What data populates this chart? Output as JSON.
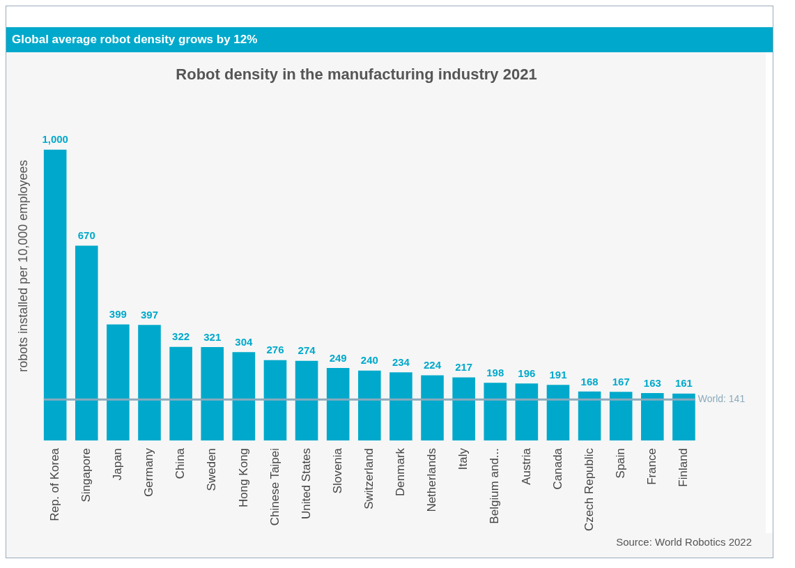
{
  "chart_data": {
    "type": "bar",
    "title": "Global average robot density grows by 12%",
    "subtitle": "Robot density in the manufacturing industry 2021",
    "ylabel": "robots installed per 10,000 employees",
    "categories": [
      "Rep. of Korea",
      "Singapore",
      "Japan",
      "Germany",
      "China",
      "Sweden",
      "Hong Kong",
      "Chinese Taipei",
      "United States",
      "Slovenia",
      "Switzerland",
      "Denmark",
      "Netherlands",
      "Italy",
      "Belgium and...",
      "Austria",
      "Canada",
      "Czech Republic",
      "Spain",
      "France",
      "Finland"
    ],
    "values": [
      1000,
      670,
      399,
      397,
      322,
      321,
      304,
      276,
      274,
      249,
      240,
      234,
      224,
      217,
      198,
      196,
      191,
      168,
      167,
      163,
      161
    ],
    "color": "#00a9cb",
    "value_labels": [
      "1,000",
      "670",
      "399",
      "397",
      "322",
      "321",
      "304",
      "276",
      "274",
      "249",
      "240",
      "234",
      "224",
      "217",
      "198",
      "196",
      "191",
      "168",
      "167",
      "163",
      "161"
    ],
    "tick_labels": "x",
    "grid": false,
    "legend": false,
    "ref_lines": [
      {
        "axis": "y",
        "value": 141,
        "label": "World: 141",
        "color": "#8aaabb"
      }
    ],
    "annotations": [
      "Source: World Robotics 2022"
    ]
  }
}
